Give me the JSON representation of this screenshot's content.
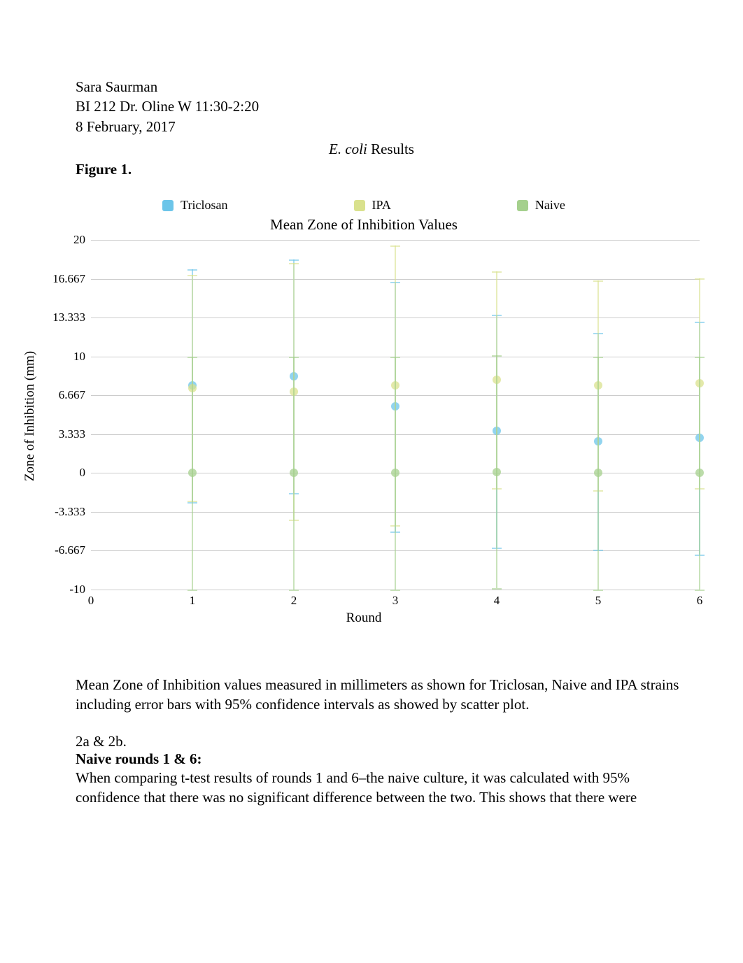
{
  "header": {
    "author": "Sara Saurman",
    "course": "BI 212 Dr. Oline W 11:30-2:20",
    "date": "8 February, 2017"
  },
  "results_title_italic": "E. coli",
  "results_title_rest": " Results",
  "figure_label": "Figure 1.",
  "chart": {
    "type": "scatter-errorbar",
    "title": "Mean Zone of Inhibition Values",
    "xlabel": "Round",
    "ylabel": "Zone of Inhibition (mm)",
    "background_color": "#ffffff",
    "grid_color": "#cccccc",
    "title_fontsize": 21,
    "label_fontsize": 19,
    "tick_fontsize": 17,
    "xlim": [
      0,
      6
    ],
    "ylim": [
      -10,
      20
    ],
    "xticks": [
      0,
      1,
      2,
      3,
      4,
      5,
      6
    ],
    "yticks": [
      -10,
      -6.667,
      -3.333,
      0,
      3.333,
      6.667,
      10,
      13.333,
      16.667,
      20
    ],
    "ytick_labels": [
      "-10",
      "-6.667",
      "-3.333",
      "0",
      "3.333",
      "6.667",
      "10",
      "13.333",
      "16.667",
      "20"
    ],
    "marker_size": 12,
    "errorbar_width": 2,
    "errorbar_cap_width": 14,
    "legend_position": "top",
    "series": [
      {
        "name": "Triclosan",
        "color": "#6cc5e9",
        "points": [
          {
            "x": 1,
            "y": 7.5,
            "err": 10.0
          },
          {
            "x": 2,
            "y": 8.3,
            "err": 10.0
          },
          {
            "x": 3,
            "y": 5.7,
            "err": 10.7
          },
          {
            "x": 4,
            "y": 3.6,
            "err": 10.0
          },
          {
            "x": 5,
            "y": 2.7,
            "err": 9.3
          },
          {
            "x": 6,
            "y": 3.0,
            "err": 10.0
          }
        ]
      },
      {
        "name": "IPA",
        "color": "#d9e18d",
        "points": [
          {
            "x": 1,
            "y": 7.3,
            "err": 9.7
          },
          {
            "x": 2,
            "y": 7.0,
            "err": 11.0
          },
          {
            "x": 3,
            "y": 7.5,
            "err": 12.0
          },
          {
            "x": 4,
            "y": 8.0,
            "err": 9.3
          },
          {
            "x": 5,
            "y": 7.5,
            "err": 9.0
          },
          {
            "x": 6,
            "y": 7.7,
            "err": 9.0
          }
        ]
      },
      {
        "name": "Naive",
        "color": "#a5d08d",
        "points": [
          {
            "x": 1,
            "y": 0.0,
            "err": 10.0
          },
          {
            "x": 2,
            "y": 0.0,
            "err": 10.0
          },
          {
            "x": 3,
            "y": 0.0,
            "err": 10.0
          },
          {
            "x": 4,
            "y": 0.1,
            "err": 10.0
          },
          {
            "x": 5,
            "y": 0.0,
            "err": 10.0
          },
          {
            "x": 6,
            "y": 0.0,
            "err": 10.0
          }
        ]
      }
    ]
  },
  "caption": "Mean Zone of Inhibition values measured in millimeters as shown for Triclosan, Naive and IPA strains including error bars with 95% confidence intervals as showed by scatter plot.",
  "section_label": "2a & 2b.",
  "section_bold": "Naive rounds 1 & 6:",
  "body": "When comparing t-test results of rounds 1 and 6–the naive culture, it was calculated with 95% confidence that there was no significant difference between the two. This shows that there were"
}
